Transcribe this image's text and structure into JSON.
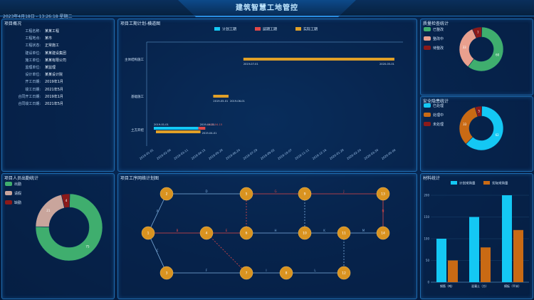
{
  "header": {
    "title": "建筑智慧工地管控",
    "datetime": "2023年4月18日 - 13:26:18 星期二"
  },
  "colors": {
    "accent": "#2a8de0",
    "green": "#3fae6e",
    "pink": "#e9a08e",
    "darkred": "#8b1a1a",
    "cyan": "#14c8f4",
    "orange": "#c96a14",
    "gold": "#e0a028",
    "node": "#d99320"
  },
  "project_info": {
    "title": "项目概况",
    "rows": [
      {
        "k": "工程名称:",
        "v": "某某工程"
      },
      {
        "k": "工程地点:",
        "v": "某市"
      },
      {
        "k": "工程状态:",
        "v": "正常施工"
      },
      {
        "k": "建设单位:",
        "v": "某某建设集团"
      },
      {
        "k": "施工单位:",
        "v": "某某有限公司"
      },
      {
        "k": "监理单位:",
        "v": "某监理"
      },
      {
        "k": "设计单位:",
        "v": "某某设计院"
      },
      {
        "k": "开工日期:",
        "v": "2019年1月"
      },
      {
        "k": "竣工日期:",
        "v": "2021年5月"
      },
      {
        "k": "合同开工日期:",
        "v": "2019年1月"
      },
      {
        "k": "合同竣工日期:",
        "v": "2021年5月"
      }
    ]
  },
  "gantt": {
    "title": "项目工期计划-横道图",
    "legend": [
      "计划工期",
      "延期工期",
      "实际工期"
    ],
    "rows": [
      "主体结构施工",
      "基础施工",
      "土方开挖"
    ],
    "x_ticks": [
      "2019-01-01",
      "2019-02-04",
      "2019-03-11",
      "2019-04-15",
      "2019-05-20",
      "2019-06-24",
      "2019-07-29",
      "2019-09-02",
      "2019-10-07",
      "2019-11-11",
      "2019-12-16",
      "2020-01-20",
      "2020-02-24",
      "2020-03-30",
      "2020-05-04"
    ],
    "labels": {
      "r1_start": "2019-07-01",
      "r1_end": "2020-05-01",
      "r2_start": "2019-05-01",
      "r2_end": "2019-06-01",
      "r3_plan_start": "2019-01-01",
      "r3_plan_end": "2019-04-01",
      "r3_delay": "2019-04-15",
      "r3_actual_end": "2019-04-01"
    }
  },
  "quality_stats": {
    "title": "质量检查统计",
    "legend": [
      "已整改",
      "整改中",
      "待整改"
    ],
    "values": [
      60,
      33,
      7
    ]
  },
  "safety_stats": {
    "title": "安全隐患统计",
    "legend": [
      "已处理",
      "处理中",
      "未处理"
    ],
    "values": [
      62,
      33,
      5
    ]
  },
  "personnel": {
    "title": "项目人员出勤统计",
    "legend": [
      "出勤",
      "请假",
      "缺勤"
    ],
    "values": [
      75,
      21,
      4
    ]
  },
  "network": {
    "title": "项目工序网络计划图",
    "nodes": [
      "1",
      "2",
      "3",
      "4",
      "5",
      "6",
      "7",
      "8",
      "9",
      "10",
      "11",
      "12",
      "13",
      "14"
    ],
    "edge_labels": [
      "A",
      "B",
      "C",
      "D",
      "E",
      "F",
      "G",
      "H",
      "I",
      "J",
      "K",
      "L",
      "M",
      "N"
    ]
  },
  "materials": {
    "title": "材料统计",
    "legend": [
      "计划采购量",
      "实际采购量"
    ],
    "categories": [
      "钢筋（吨）",
      "混凝土（方）",
      "模板（平米）"
    ],
    "y_ticks": [
      "0",
      "50",
      "100",
      "150",
      "200"
    ]
  },
  "chart_data": {
    "type": "bar",
    "title": "材料统计",
    "categories": [
      "钢筋（吨）",
      "混凝土（方）",
      "模板（平米）"
    ],
    "series": [
      {
        "name": "计划采购量",
        "values": [
          100,
          150,
          200
        ]
      },
      {
        "name": "实际采购量",
        "values": [
          50,
          80,
          120
        ]
      }
    ],
    "ylim": [
      0,
      200
    ]
  }
}
